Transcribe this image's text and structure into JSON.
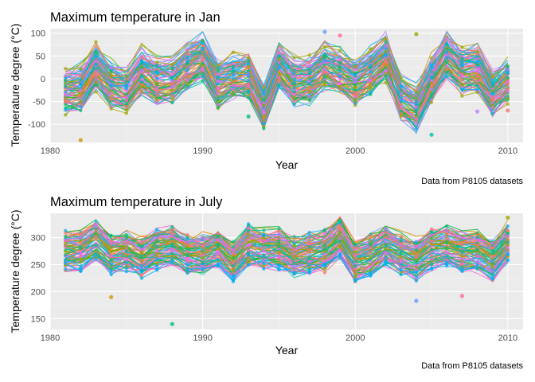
{
  "chart_data": [
    {
      "type": "line",
      "title": "Maximum temperature in Jan",
      "xlabel": "Year",
      "ylabel": "Temperature degree (°C)",
      "caption": "Data from P8105 datasets",
      "xlim": [
        1980,
        2011
      ],
      "ylim": [
        -140,
        110
      ],
      "xticks": [
        1980,
        1990,
        2000,
        2010
      ],
      "xtick_labels": [
        "1980",
        "1990",
        "2000",
        "2010"
      ],
      "yticks": [
        -100,
        -50,
        0,
        50,
        100
      ],
      "ytick_labels": [
        "-100",
        "-50",
        "0",
        "50",
        "100"
      ],
      "grid": true,
      "legend": "none",
      "mean_series": {
        "x": [
          1981,
          1982,
          1983,
          1984,
          1985,
          1986,
          1987,
          1988,
          1989,
          1990,
          1991,
          1992,
          1993,
          1994,
          1995,
          1996,
          1997,
          1998,
          1999,
          2000,
          2001,
          2002,
          2003,
          2004,
          2005,
          2006,
          2007,
          2008,
          2009,
          2010
        ],
        "values": [
          -25,
          -20,
          30,
          -10,
          -25,
          20,
          0,
          0,
          30,
          50,
          -10,
          5,
          10,
          -60,
          30,
          -5,
          0,
          30,
          15,
          -5,
          20,
          50,
          -40,
          -60,
          0,
          55,
          20,
          25,
          -30,
          0
        ]
      },
      "outliers": [
        {
          "x": 1982,
          "y": -135
        },
        {
          "x": 1993,
          "y": -83
        },
        {
          "x": 1998,
          "y": 103
        },
        {
          "x": 1999,
          "y": 95
        },
        {
          "x": 2004,
          "y": 98
        },
        {
          "x": 2005,
          "y": -123
        },
        {
          "x": 2008,
          "y": -72
        },
        {
          "x": 2010,
          "y": -70
        }
      ],
      "series_colors": [
        "#F8766D",
        "#E58700",
        "#C99800",
        "#A3A500",
        "#6BB100",
        "#00BA38",
        "#00BF7D",
        "#00C0AF",
        "#00BCD8",
        "#00B0F6",
        "#619CFF",
        "#B983FF",
        "#E76BF3",
        "#FD61D1",
        "#FF67A4"
      ]
    },
    {
      "type": "line",
      "title": "Maximum temperature in July",
      "xlabel": "Year",
      "ylabel": "Temperature degree (°C)",
      "caption": "Data from P8105 datasets",
      "xlim": [
        1980,
        2011
      ],
      "ylim": [
        130,
        345
      ],
      "xticks": [
        1980,
        1990,
        2000,
        2010
      ],
      "xtick_labels": [
        "1980",
        "1990",
        "2000",
        "2010"
      ],
      "yticks": [
        150,
        200,
        250,
        300
      ],
      "ytick_labels": [
        "150",
        "200",
        "250",
        "300"
      ],
      "grid": true,
      "legend": "none",
      "mean_series": {
        "x": [
          1981,
          1982,
          1983,
          1984,
          1985,
          1986,
          1987,
          1988,
          1989,
          1990,
          1991,
          1992,
          1993,
          1994,
          1995,
          1996,
          1997,
          1998,
          1999,
          2000,
          2001,
          2002,
          2003,
          2004,
          2005,
          2006,
          2007,
          2008,
          2009,
          2010
        ],
        "values": [
          275,
          275,
          295,
          270,
          275,
          265,
          280,
          285,
          270,
          270,
          280,
          255,
          285,
          280,
          280,
          265,
          270,
          275,
          300,
          255,
          270,
          285,
          270,
          260,
          280,
          285,
          275,
          275,
          260,
          290
        ]
      },
      "outliers": [
        {
          "x": 1984,
          "y": 190
        },
        {
          "x": 1988,
          "y": 140
        },
        {
          "x": 2004,
          "y": 183
        },
        {
          "x": 2007,
          "y": 192
        },
        {
          "x": 2010,
          "y": 337
        },
        {
          "x": 1999,
          "y": 328
        },
        {
          "x": 1983,
          "y": 322
        }
      ],
      "series_colors": [
        "#F8766D",
        "#E58700",
        "#C99800",
        "#A3A500",
        "#6BB100",
        "#00BA38",
        "#00BF7D",
        "#00C0AF",
        "#00BCD8",
        "#00B0F6",
        "#619CFF",
        "#B983FF",
        "#E76BF3",
        "#FD61D1",
        "#FF67A4"
      ]
    }
  ]
}
